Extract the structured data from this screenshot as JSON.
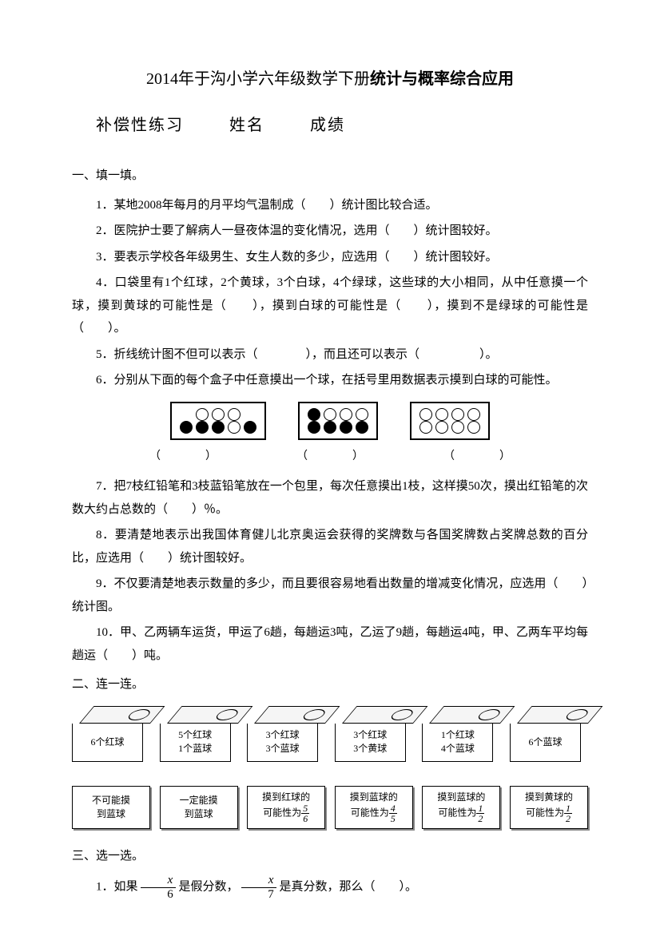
{
  "title_prefix": "2014年于沟小学六年级数学下册",
  "title_bold": "统计与概率综合应用",
  "subtitle": {
    "a": "补偿性练习",
    "b": "姓名",
    "c": "成绩"
  },
  "s1": {
    "header": "一、填一填。",
    "q1": "1．某地2008年每月的月平均气温制成（　　）统计图比较合适。",
    "q2": "2．医院护士要了解病人一昼夜体温的变化情况，选用（　　）统计图较好。",
    "q3": "3．要表示学校各年级男生、女生人数的多少，应选用（　　）统计图较好。",
    "q4": "4．口袋里有1个红球，2个黄球，3个白球，4个绿球，这些球的大小相同，从中任意摸一个球，摸到黄球的可能性是（　　），摸到白球的可能性是（　　），摸到不是绿球的可能性是（　　）。",
    "q5": "5．折线统计图不但可以表示（　　　　），而且还可以表示（　　　　　）。",
    "q6": "6．分别从下面的每个盒子中任意摸出一个球，在括号里用数据表示摸到白球的可能性。",
    "q7": "7．把7枝红铅笔和3枝蓝铅笔放在一个包里，每次任意摸出1枝，这样摸50次，摸出红铅笔的次数大约占总数的（　　）％。",
    "q8": "8．要清楚地表示出我国体育健儿北京奥运会获得的奖牌数与各国奖牌数占奖牌总数的百分比，应选用（　　）统计图较好。",
    "q9": "9．不仅要清楚地表示数量的多少，而且要很容易地看出数量的增减变化情况，应选用（　　）统计图。",
    "q10": "10．甲、乙两辆车运货，甲运了6趟，每趟运3吨，乙运了9趟，每趟运4吨，甲、乙两车平均每趟运（　　）吨。"
  },
  "boxes": {
    "box1": {
      "rows": [
        [
          0,
          0,
          0
        ],
        [
          1,
          1,
          1,
          0,
          1
        ]
      ]
    },
    "box2": {
      "rows": [
        [
          1,
          0,
          0,
          0
        ],
        [
          1,
          1,
          1,
          1
        ]
      ]
    },
    "box3": {
      "rows": [
        [
          0,
          0,
          0,
          0
        ],
        [
          0,
          0,
          0,
          0
        ]
      ]
    }
  },
  "answers_label": [
    "（　　　　）",
    "（　　　　）",
    "（　　　　）"
  ],
  "s2": {
    "header": "二、连一连。",
    "cubes": [
      "6个红球",
      "5个红球\n1个蓝球",
      "3个红球\n3个蓝球",
      "3个红球\n3个黄球",
      "1个红球\n4个蓝球",
      "6个蓝球"
    ],
    "cards": [
      {
        "text": "不可能摸\n到蓝球"
      },
      {
        "text": "一定能摸\n到蓝球"
      },
      {
        "text": "摸到红球的\n可能性为",
        "frac": [
          "5",
          "6"
        ]
      },
      {
        "text": "摸到蓝球的\n可能性为",
        "frac": [
          "4",
          "5"
        ]
      },
      {
        "text": "摸到蓝球的\n可能性为",
        "frac": [
          "1",
          "2"
        ]
      },
      {
        "text": "摸到黄球的\n可能性为",
        "frac": [
          "1",
          "2"
        ]
      }
    ]
  },
  "s3": {
    "header": "三、选一选。",
    "q1_a": "1．如果",
    "q1_b": "是假分数，",
    "q1_c": "是真分数，那么（　　）。",
    "frac1": [
      "x",
      "6"
    ],
    "frac2": [
      "x",
      "7"
    ]
  }
}
